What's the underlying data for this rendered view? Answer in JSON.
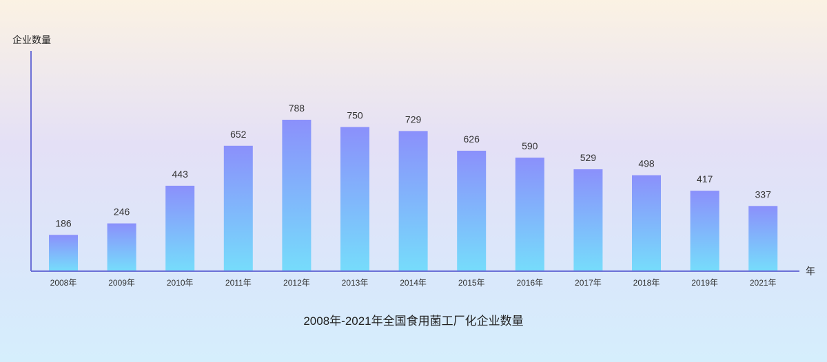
{
  "chart_data": {
    "type": "bar",
    "title": "2008年-2021年全国食用菌工厂化企业数量",
    "xlabel": "年",
    "ylabel": "企业数量",
    "categories": [
      "2008年",
      "2009年",
      "2010年",
      "2011年",
      "2012年",
      "2013年",
      "2014年",
      "2015年",
      "2016年",
      "2017年",
      "2018年",
      "2019年",
      "2021年"
    ],
    "values": [
      186,
      246,
      443,
      652,
      788,
      750,
      729,
      626,
      590,
      529,
      498,
      417,
      337
    ],
    "ylim": [
      0,
      900
    ],
    "grid": false,
    "data_labels": true,
    "colors": {
      "bar_top": "#8b90fb",
      "bar_bottom": "#76dcfb",
      "axis": "#6b6fd6"
    }
  }
}
